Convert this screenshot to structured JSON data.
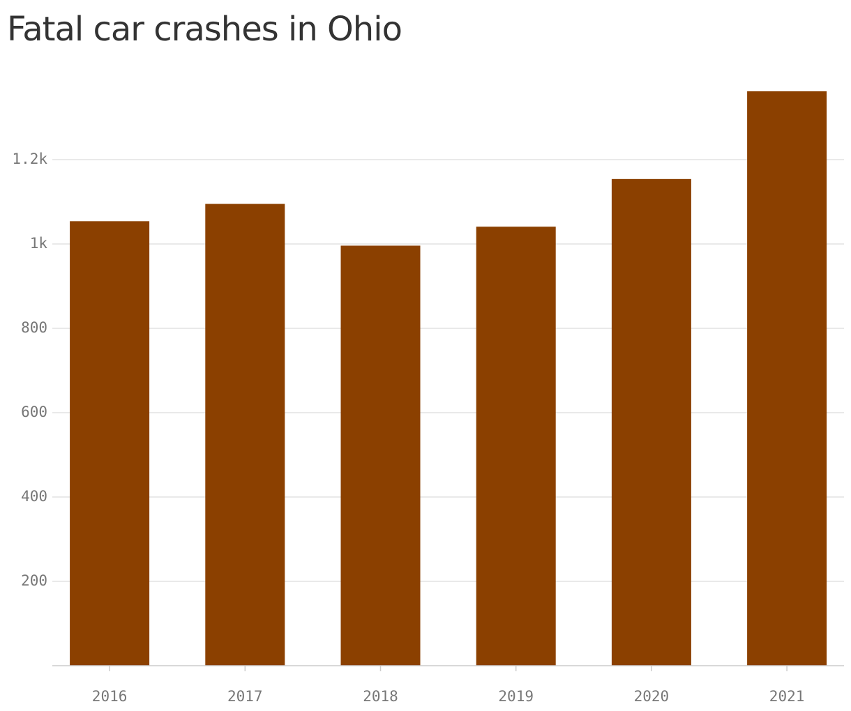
{
  "title": "Fatal car crashes in Ohio",
  "colors": {
    "bar": "#8b4000",
    "grid": "#e2e2e2",
    "title": "#333333",
    "tick_text": "#777777"
  },
  "chart_data": {
    "type": "bar",
    "title": "Fatal car crashes in Ohio",
    "xlabel": "",
    "ylabel": "",
    "categories": [
      "2016",
      "2017",
      "2018",
      "2019",
      "2020",
      "2021"
    ],
    "values": [
      1054,
      1095,
      996,
      1041,
      1154,
      1362
    ],
    "ylim": [
      0,
      1400
    ],
    "yticks": [
      200,
      400,
      600,
      800,
      1000,
      1200
    ],
    "ytick_labels": [
      "200",
      "400",
      "600",
      "800",
      "1k",
      "1.2k"
    ],
    "grid": true,
    "legend": "none"
  }
}
